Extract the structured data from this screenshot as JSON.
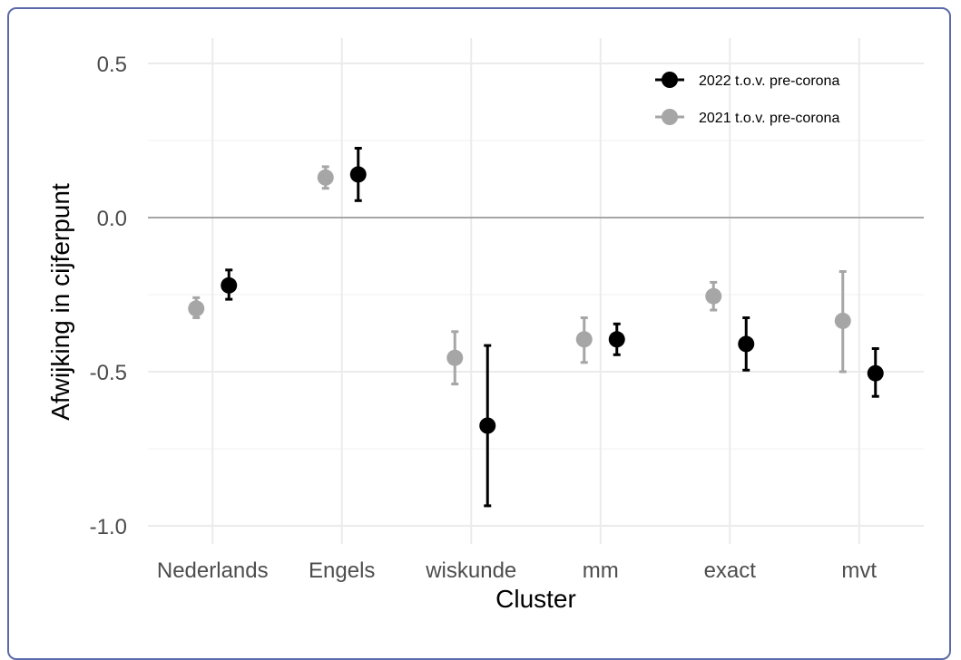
{
  "chart_data": {
    "type": "scatter",
    "subtype": "point-errorbar",
    "xlabel": "Cluster",
    "ylabel": "Afwijking in cijferpunt",
    "categories": [
      "Nederlands",
      "Engels",
      "wiskunde",
      "mm",
      "exact",
      "mvt"
    ],
    "ylim": [
      -1.1,
      0.55
    ],
    "yticks": [
      0.5,
      0.0,
      -0.5,
      -1.0
    ],
    "ytick_labels": [
      "0.5",
      "0.0",
      "-0.5",
      "-1.0"
    ],
    "grid": true,
    "legend_position": "top-right",
    "series": [
      {
        "name": "2022 t.o.v. pre-corona",
        "color": "#000000",
        "values": [
          -0.22,
          0.14,
          -0.675,
          -0.395,
          -0.41,
          -0.505
        ],
        "lower": [
          -0.265,
          0.055,
          -0.935,
          -0.445,
          -0.495,
          -0.58
        ],
        "upper": [
          -0.17,
          0.225,
          -0.415,
          -0.345,
          -0.325,
          -0.425
        ]
      },
      {
        "name": "2021 t.o.v. pre-corona",
        "color": "#a6a6a6",
        "values": [
          -0.295,
          0.13,
          -0.455,
          -0.395,
          -0.255,
          -0.335
        ],
        "lower": [
          -0.325,
          0.095,
          -0.54,
          -0.47,
          -0.3,
          -0.5
        ],
        "upper": [
          -0.26,
          0.165,
          -0.37,
          -0.325,
          -0.21,
          -0.175
        ]
      }
    ]
  }
}
